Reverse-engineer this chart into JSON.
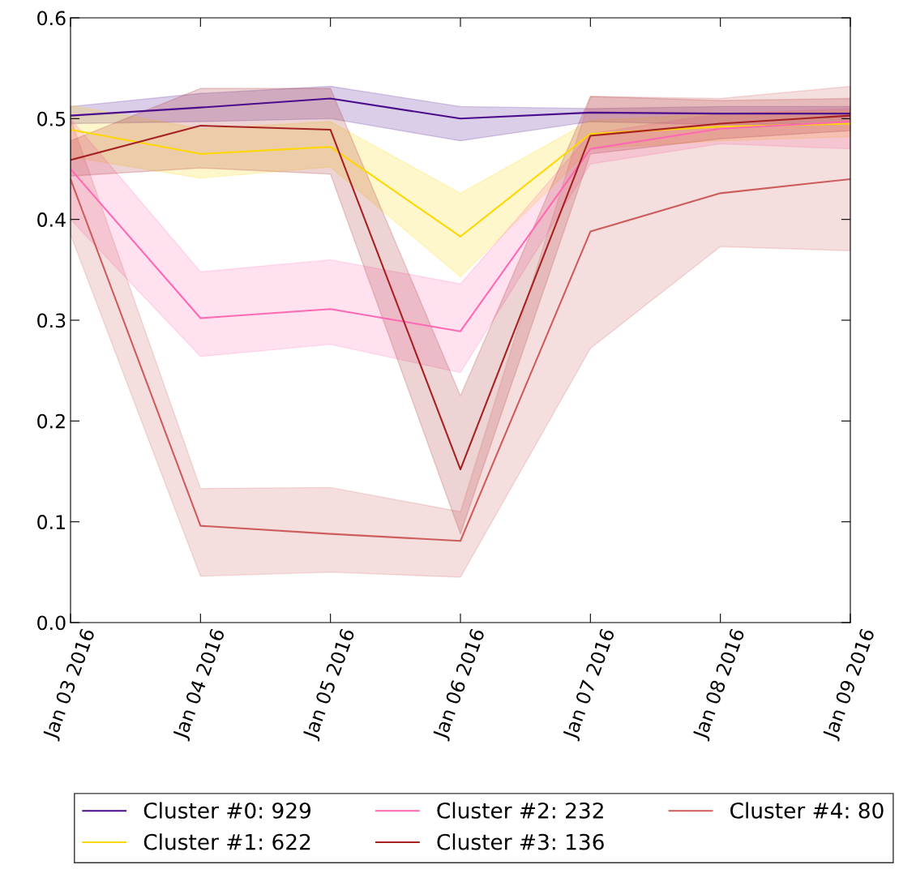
{
  "chart_data": {
    "type": "line",
    "x": [
      "2016-01-03",
      "2016-01-04",
      "2016-01-05",
      "2016-01-06",
      "2016-01-07",
      "2016-01-08",
      "2016-01-09"
    ],
    "series": [
      {
        "name": "Cluster #0: 929",
        "color": "#4b0c8c",
        "values": [
          0.503,
          0.511,
          0.52,
          0.5,
          0.506,
          0.505,
          0.505
        ],
        "lower": [
          0.495,
          0.497,
          0.5,
          0.478,
          0.497,
          0.494,
          0.495
        ],
        "upper": [
          0.512,
          0.525,
          0.532,
          0.512,
          0.51,
          0.512,
          0.512
        ]
      },
      {
        "name": "Cluster #1: 622",
        "color": "#ffd700",
        "values": [
          0.489,
          0.465,
          0.472,
          0.383,
          0.485,
          0.492,
          0.495
        ],
        "lower": [
          0.462,
          0.441,
          0.452,
          0.343,
          0.47,
          0.478,
          0.482
        ],
        "upper": [
          0.513,
          0.49,
          0.497,
          0.426,
          0.498,
          0.505,
          0.508
        ]
      },
      {
        "name": "Cluster #2: 232",
        "color": "#ff69b4",
        "values": [
          0.45,
          0.302,
          0.311,
          0.289,
          0.47,
          0.49,
          0.497
        ],
        "lower": [
          0.4,
          0.264,
          0.276,
          0.248,
          0.455,
          0.475,
          0.47
        ],
        "upper": [
          0.5,
          0.348,
          0.36,
          0.336,
          0.485,
          0.505,
          0.51
        ]
      },
      {
        "name": "Cluster #3: 136",
        "color": "#a52222",
        "values": [
          0.459,
          0.493,
          0.489,
          0.152,
          0.483,
          0.495,
          0.503
        ],
        "lower": [
          0.443,
          0.451,
          0.445,
          0.088,
          0.465,
          0.48,
          0.488
        ],
        "upper": [
          0.478,
          0.53,
          0.53,
          0.225,
          0.522,
          0.518,
          0.52
        ]
      },
      {
        "name": "Cluster #4: 80",
        "color": "#cd5c5c",
        "values": [
          0.44,
          0.096,
          0.088,
          0.081,
          0.388,
          0.426,
          0.44
        ],
        "lower": [
          0.385,
          0.046,
          0.05,
          0.045,
          0.272,
          0.373,
          0.369
        ],
        "upper": [
          0.5,
          0.133,
          0.134,
          0.11,
          0.522,
          0.52,
          0.532
        ]
      }
    ],
    "xlim": [
      "2016-01-03",
      "2016-01-09"
    ],
    "xticks": [
      {
        "value": "2016-01-03",
        "label": "Jan 03 2016"
      },
      {
        "value": "2016-01-04",
        "label": "Jan 04 2016"
      },
      {
        "value": "2016-01-05",
        "label": "Jan 05 2016"
      },
      {
        "value": "2016-01-06",
        "label": "Jan 06 2016"
      },
      {
        "value": "2016-01-07",
        "label": "Jan 07 2016"
      },
      {
        "value": "2016-01-08",
        "label": "Jan 08 2016"
      },
      {
        "value": "2016-01-09",
        "label": "Jan 09 2016"
      }
    ],
    "ylim": [
      0,
      0.6
    ],
    "yticks": [
      {
        "value": 0,
        "label": "0.0"
      },
      {
        "value": 0.1,
        "label": "0.1"
      },
      {
        "value": 0.2,
        "label": "0.2"
      },
      {
        "value": 0.3,
        "label": "0.3"
      },
      {
        "value": 0.4,
        "label": "0.4"
      },
      {
        "value": 0.5,
        "label": "0.5"
      },
      {
        "value": 0.6,
        "label": "0.6"
      }
    ],
    "grid": false,
    "legend": "bottom",
    "marker": "none",
    "line_style": "solid"
  }
}
